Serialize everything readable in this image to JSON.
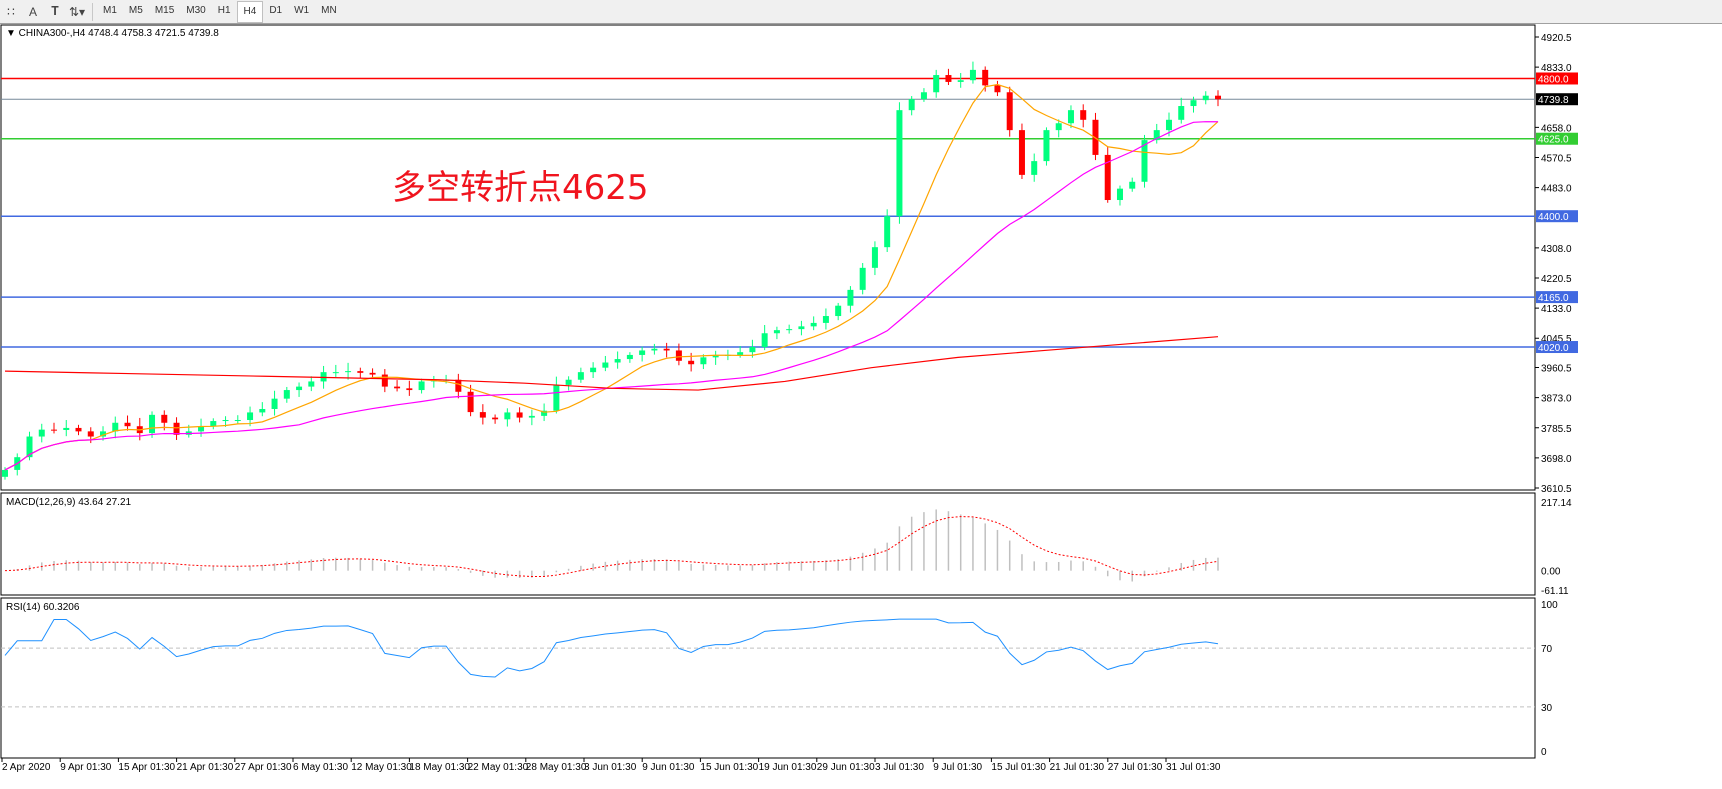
{
  "toolbar": {
    "icons": [
      "fibonacci-fan-icon",
      "text-icon",
      "text-label-icon",
      "arrows-icon"
    ],
    "timeframes": [
      "M1",
      "M5",
      "M15",
      "M30",
      "H1",
      "H4",
      "D1",
      "W1",
      "MN"
    ],
    "active_timeframe": "H4"
  },
  "chart_header": "CHINA300-,H4  4748.4 4758.3 4721.5 4739.8",
  "annotation": "多空转折点4625",
  "colors": {
    "bull": "#00ff7f",
    "bear": "#ff0000",
    "ma_fast": "#ffa500",
    "ma_mid": "#ff00ff",
    "ma_slow": "#ff0000",
    "support": "#4169e1",
    "pivot": "#32cd32",
    "resistance": "#ff0000",
    "bid": "#778899",
    "rsi": "#1e90ff",
    "macd_signal": "#ff0000",
    "macd_hist": "#c0c0c0"
  },
  "chart_data": {
    "type": "candlestick",
    "symbol": "CHINA300-",
    "timeframe": "H4",
    "ylim": [
      3610.5,
      4920.5
    ],
    "y_ticks": [
      "4920.5",
      "4833.0",
      "4658.0",
      "4570.5",
      "4483.0",
      "4308.0",
      "4220.5",
      "4133.0",
      "4045.5",
      "3960.5",
      "3873.0",
      "3785.5",
      "3698.0",
      "3610.5"
    ],
    "x_ticks": [
      "2 Apr 2020",
      "9 Apr 01:30",
      "15 Apr 01:30",
      "21 Apr 01:30",
      "27 Apr 01:30",
      "6 May 01:30",
      "12 May 01:30",
      "18 May 01:30",
      "22 May 01:30",
      "28 May 01:30",
      "3 Jun 01:30",
      "9 Jun 01:30",
      "15 Jun 01:30",
      "19 Jun 01:30",
      "29 Jun 01:30",
      "3 Jul 01:30",
      "9 Jul 01:30",
      "15 Jul 01:30",
      "21 Jul 01:30",
      "27 Jul 01:30",
      "31 Jul 01:30"
    ],
    "closes": [
      3663,
      3700,
      3760,
      3780,
      3779,
      3785,
      3775,
      3760,
      3775,
      3800,
      3790,
      3770,
      3823,
      3800,
      3765,
      3775,
      3790,
      3805,
      3808,
      3808,
      3830,
      3840,
      3870,
      3895,
      3905,
      3920,
      3947,
      3947,
      3950,
      3945,
      3940,
      3905,
      3900,
      3895,
      3920,
      3925,
      3925,
      3890,
      3831,
      3815,
      3810,
      3830,
      3815,
      3820,
      3835,
      3910,
      3925,
      3947,
      3960,
      3975,
      3985,
      3997,
      4010,
      4015,
      4010,
      3980,
      3970,
      3990,
      3997,
      3997,
      4005,
      4020,
      4060,
      4069,
      4072,
      4080,
      4090,
      4110,
      4140,
      4186,
      4250,
      4310,
      4400,
      4708,
      4740,
      4760,
      4810,
      4790,
      4795,
      4825,
      4780,
      4760,
      4650,
      4520,
      4560,
      4650,
      4670,
      4708,
      4680,
      4578,
      4447,
      4480,
      4500,
      4621,
      4650,
      4680,
      4720,
      4737,
      4750,
      4739.8
    ],
    "ma_slow": [
      3950,
      3945,
      3940,
      3935,
      3930,
      3925,
      3915,
      3900,
      3895,
      3920,
      3960,
      3990,
      4010,
      4030,
      4050
    ],
    "horizontal_lines": [
      {
        "price": "4800.0",
        "kind": "resistance"
      },
      {
        "price": "4739.8",
        "kind": "bid"
      },
      {
        "price": "4625.0",
        "kind": "pivot"
      },
      {
        "price": "4400.0",
        "kind": "support"
      },
      {
        "price": "4165.0",
        "kind": "support"
      },
      {
        "price": "4020.0",
        "kind": "support"
      }
    ],
    "macd": {
      "label": "MACD(12,26,9) 43.64 27.21",
      "ylim": [
        -61.11,
        217.14
      ],
      "ticks": [
        "217.14",
        "0.00",
        "-61.11"
      ]
    },
    "rsi": {
      "label": "RSI(14) 60.3206",
      "ylim": [
        0,
        100
      ],
      "ticks": [
        "100",
        "70",
        "30",
        "0"
      ],
      "levels": [
        70,
        30
      ]
    }
  }
}
